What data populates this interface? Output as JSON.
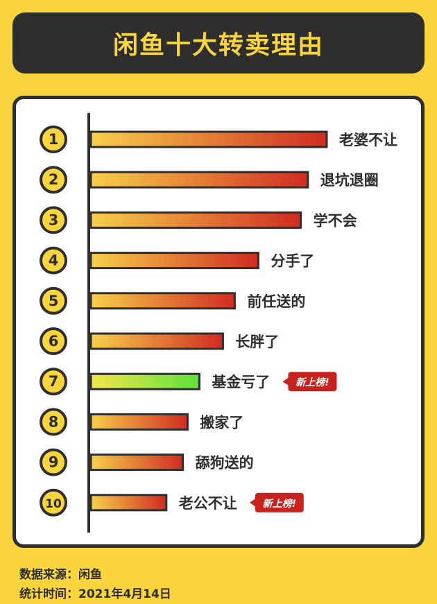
{
  "title": "闲鱼十大转卖理由",
  "badge_text": "新上榜!",
  "colors": {
    "background": "#fbd53d",
    "dark": "#2e2e2e",
    "bar_start": "#f7d04a",
    "bar_end": "#d12b22",
    "highlight_start": "#f3e54a",
    "highlight_end": "#5ee23a",
    "badge": "#c8231f"
  },
  "chart_data": {
    "type": "bar",
    "orientation": "horizontal",
    "title": "闲鱼十大转卖理由",
    "categories": [
      "老婆不让",
      "退坑退圈",
      "学不会",
      "分手了",
      "前任送的",
      "长胖了",
      "基金亏了",
      "搬家了",
      "舔狗送的",
      "老公不让"
    ],
    "ranks": [
      "1",
      "2",
      "3",
      "4",
      "5",
      "6",
      "7",
      "8",
      "9",
      "10"
    ],
    "values": [
      10,
      9.2,
      8.9,
      7.1,
      6.1,
      5.6,
      4.6,
      4.1,
      3.9,
      3.2
    ],
    "new_entries": [
      false,
      false,
      false,
      false,
      false,
      false,
      true,
      false,
      false,
      true
    ],
    "highlighted": [
      false,
      false,
      false,
      false,
      false,
      false,
      true,
      false,
      false,
      false
    ]
  },
  "footer": {
    "source_label": "数据来源：",
    "source_value": "闲鱼",
    "date_label": "统计时间：",
    "date_value": "2021年4月14日"
  }
}
